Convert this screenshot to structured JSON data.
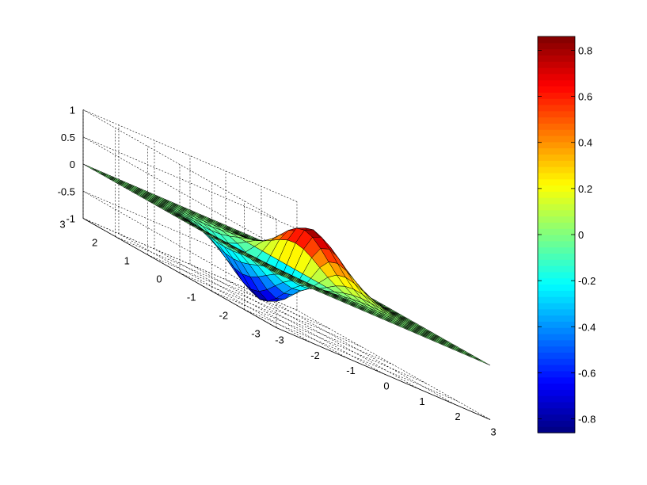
{
  "chart_data": {
    "type": "surface",
    "function": "z = x * exp(-x^2 - y^2) * 2",
    "x_range": [
      -3,
      3
    ],
    "y_range": [
      -3,
      3
    ],
    "z_range": [
      -1,
      1
    ],
    "grid_points": 25,
    "x_ticks": [
      "-3",
      "-2",
      "-1",
      "0",
      "1",
      "2",
      "3"
    ],
    "y_ticks": [
      "-3",
      "-2",
      "-1",
      "0",
      "1",
      "2",
      "3"
    ],
    "z_ticks": [
      "-1",
      "-0.5",
      "0",
      "0.5",
      "1"
    ],
    "colorbar": {
      "range": [
        -0.86,
        0.86
      ],
      "ticks": [
        "-0.8",
        "-0.6",
        "-0.4",
        "-0.2",
        "0",
        "0.2",
        "0.4",
        "0.6",
        "0.8"
      ],
      "colormap": "jet"
    },
    "grid": true,
    "title": "",
    "xlabel": "",
    "ylabel": "",
    "zlabel": ""
  }
}
